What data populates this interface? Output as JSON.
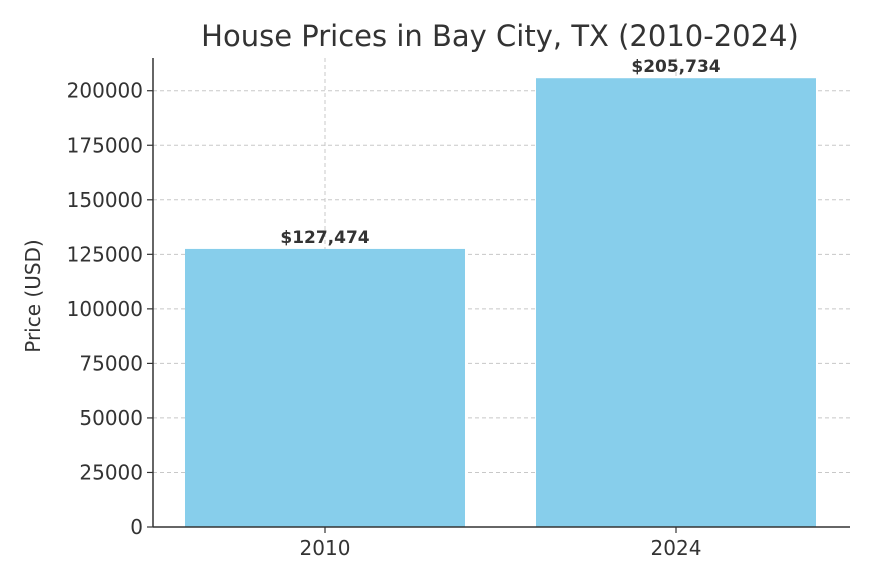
{
  "chart_data": {
    "type": "bar",
    "title": "House Prices in Bay City, TX (2010-2024)",
    "xlabel": "",
    "ylabel": "Price (USD)",
    "categories": [
      "2010",
      "2024"
    ],
    "values": [
      127474,
      205734
    ],
    "data_labels": [
      "$127,474",
      "$205,734"
    ],
    "ylim": [
      0,
      215000
    ],
    "yticks": [
      0,
      25000,
      50000,
      75000,
      100000,
      125000,
      150000,
      175000,
      200000
    ],
    "ytick_labels": [
      "0",
      "25000",
      "50000",
      "75000",
      "100000",
      "125000",
      "150000",
      "175000",
      "200000"
    ],
    "bar_color": "#87ceeb",
    "grid": true,
    "legend": "none"
  }
}
